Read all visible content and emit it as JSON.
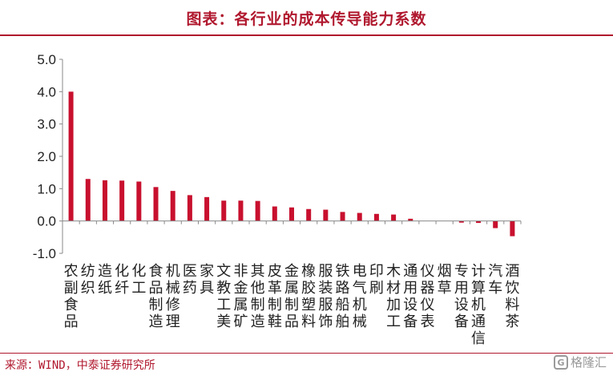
{
  "title": "图表：各行业的成本传导能力系数",
  "source": "来源：WIND，中泰证券研究所",
  "watermark": {
    "icon_name": "gelonghui-logo-icon",
    "text": "格隆汇",
    "icon_glyph": "G"
  },
  "chart_data": {
    "type": "bar",
    "title": "",
    "xlabel": "",
    "ylabel": "",
    "ylim": [
      -1.0,
      5.0
    ],
    "yticks": [
      5.0,
      4.0,
      3.0,
      2.0,
      1.0,
      0.0,
      -1.0
    ],
    "ytick_labels": [
      "5.0",
      "4.0",
      "3.0",
      "2.0",
      "1.0",
      "0.0",
      "-1.0"
    ],
    "grid": false,
    "bar_color": "#c8102e",
    "categories": [
      "农副食品",
      "纺织",
      "造纸",
      "化纤",
      "化工",
      "食品制造",
      "机械修理",
      "医药",
      "家具",
      "文教工美",
      "非金属矿",
      "其他制造",
      "皮革制鞋",
      "金属制品",
      "橡胶塑料",
      "服装服饰",
      "铁路船舶",
      "电气机械",
      "印刷",
      "木材加工",
      "通用设备",
      "仪器仪表",
      "烟草",
      "专用设备",
      "计算机通信",
      "汽车",
      "酒饮料茶"
    ],
    "values": [
      4.0,
      1.3,
      1.26,
      1.25,
      1.22,
      1.05,
      0.93,
      0.8,
      0.74,
      0.63,
      0.63,
      0.62,
      0.45,
      0.42,
      0.37,
      0.35,
      0.28,
      0.25,
      0.22,
      0.2,
      0.07,
      0.0,
      0.0,
      -0.05,
      -0.06,
      -0.22,
      -0.47
    ]
  }
}
